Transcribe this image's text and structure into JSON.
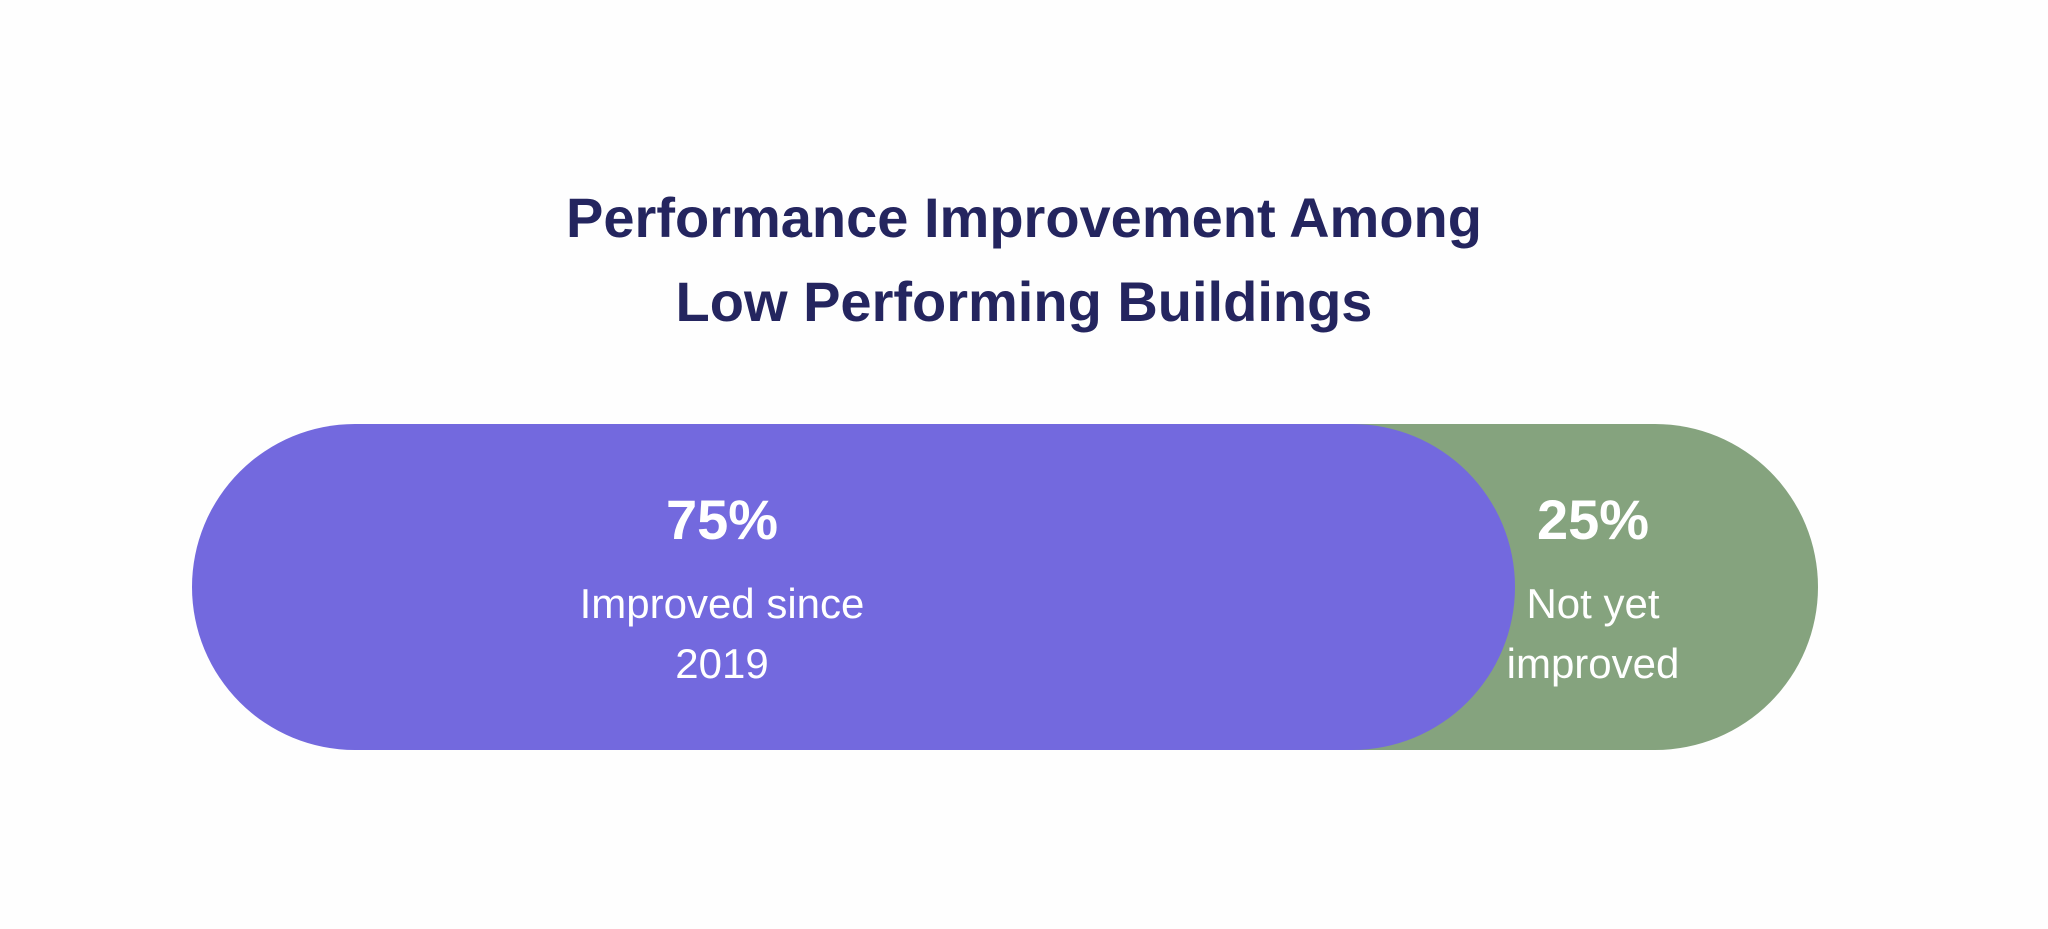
{
  "chart_data": {
    "type": "bar",
    "orientation": "horizontal-stacked",
    "title": "Performance Improvement Among Low Performing Buildings",
    "title_lines": [
      "Performance Improvement Among",
      "Low Performing Buildings"
    ],
    "unit": "%",
    "segments": [
      {
        "value": 75,
        "value_label": "75%",
        "label_lines": [
          "Improved since",
          "2019"
        ],
        "color": "#7369de"
      },
      {
        "value": 25,
        "value_label": "25%",
        "label_lines": [
          "Not yet",
          "improved"
        ],
        "color": "#85a37e"
      }
    ],
    "title_color": "#24255f"
  }
}
